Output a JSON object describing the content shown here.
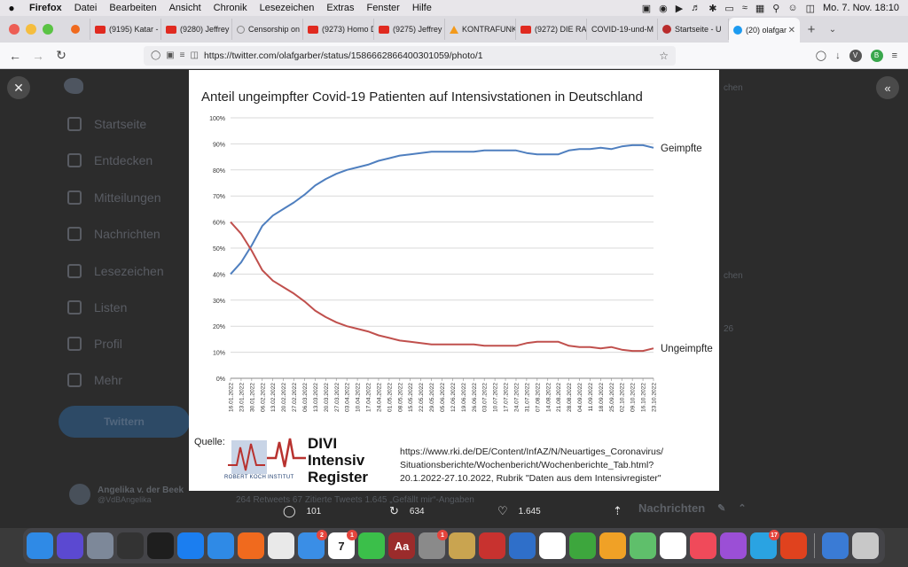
{
  "menubar": {
    "apple": "",
    "items": [
      "Firefox",
      "Datei",
      "Bearbeiten",
      "Ansicht",
      "Chronik",
      "Lesezeichen",
      "Extras",
      "Fenster",
      "Hilfe"
    ],
    "clock": "Mo. 7. Nov.  18:10"
  },
  "tabs": [
    {
      "label": "(9195) Katar -",
      "icon": "youtube"
    },
    {
      "label": "(9280) Jeffrey",
      "icon": "youtube"
    },
    {
      "label": "Censorship on",
      "icon": "globe"
    },
    {
      "label": "(9273) Homo D",
      "icon": "youtube"
    },
    {
      "label": "(9275) Jeffrey",
      "icon": "youtube"
    },
    {
      "label": "KONTRAFUNK",
      "icon": "kontrafunk"
    },
    {
      "label": "(9272) DIE RA",
      "icon": "youtube"
    },
    {
      "label": "COVID-19-und-M",
      "icon": "none"
    },
    {
      "label": "Startseite - U",
      "icon": "site"
    },
    {
      "label": "(20) olafgar",
      "icon": "twitter",
      "active": true
    }
  ],
  "urlbar": {
    "url": "https://twitter.com/olafgarber/status/1586662866400301059/photo/1"
  },
  "toolbar_avatars": [
    "V",
    "B"
  ],
  "twitter": {
    "nav": [
      "Startseite",
      "Entdecken",
      "Mitteilungen",
      "Nachrichten",
      "Lesezeichen",
      "Listen",
      "Profil",
      "Mehr"
    ],
    "tweet_button": "Twittern",
    "profile_name": "Angelika v. der Beek",
    "profile_handle": "@VdBAngelika",
    "relation_text": "264 Retweets   67 Zitierte Tweets   1.645 „Gefällt mir“-Angaben",
    "right_col": [
      "chen",
      "chen",
      "26"
    ]
  },
  "actions": {
    "replies": "101",
    "retweets": "634",
    "likes": "1.645"
  },
  "messages_label": "Nachrichten",
  "chart_data": {
    "type": "line",
    "title": "Anteil ungeimpfter Covid-19 Patienten auf Intensivstationen in Deutschland",
    "x": [
      "16.01.2022",
      "23.01.2022",
      "30.01.2022",
      "06.02.2022",
      "13.02.2022",
      "20.02.2022",
      "27.02.2022",
      "06.03.2022",
      "13.03.2022",
      "20.03.2022",
      "27.03.2022",
      "03.04.2022",
      "10.04.2022",
      "17.04.2022",
      "24.04.2022",
      "01.05.2022",
      "08.05.2022",
      "15.05.2022",
      "22.05.2022",
      "29.05.2022",
      "05.06.2022",
      "12.06.2022",
      "19.06.2022",
      "26.06.2022",
      "03.07.2022",
      "10.07.2022",
      "17.07.2022",
      "24.07.2022",
      "31.07.2022",
      "07.08.2022",
      "14.08.2022",
      "21.08.2022",
      "28.08.2022",
      "04.09.2022",
      "11.09.2022",
      "18.09.2022",
      "25.09.2022",
      "02.10.2022",
      "09.10.2022",
      "16.10.2022",
      "23.10.2022"
    ],
    "yticks": [
      "0%",
      "10%",
      "20%",
      "30%",
      "40%",
      "50%",
      "60%",
      "70%",
      "80%",
      "90%",
      "100%"
    ],
    "ylim": [
      0,
      100
    ],
    "series": [
      {
        "name": "Geimpfte",
        "color": "#4f7fbf",
        "values": [
          40,
          44.5,
          51,
          58.5,
          62.5,
          65,
          67.5,
          70.5,
          74,
          76.5,
          78.5,
          80,
          81,
          82,
          83.5,
          84.5,
          85.5,
          86,
          86.5,
          87,
          87,
          87,
          87,
          87,
          87.5,
          87.5,
          87.5,
          87.5,
          86.5,
          86,
          86,
          86,
          87.5,
          88,
          88,
          88.5,
          88,
          89,
          89.5,
          89.5,
          88.5
        ]
      },
      {
        "name": "Ungeimpfte",
        "color": "#c0504d",
        "values": [
          60,
          55.5,
          49,
          41.5,
          37.5,
          35,
          32.5,
          29.5,
          26,
          23.5,
          21.5,
          20,
          19,
          18,
          16.5,
          15.5,
          14.5,
          14,
          13.5,
          13,
          13,
          13,
          13,
          13,
          12.5,
          12.5,
          12.5,
          12.5,
          13.5,
          14,
          14,
          14,
          12.5,
          12,
          12,
          11.5,
          12,
          11,
          10.5,
          10.5,
          11.5
        ]
      }
    ]
  },
  "source": {
    "label": "Quelle:",
    "rki_text": "ROBERT KOCH INSTITUT",
    "divi_lines": [
      "DIVI",
      "Intensiv",
      "Register"
    ],
    "lines": [
      "https://www.rki.de/DE/Content/InfAZ/N/Neuartiges_Coronavirus/",
      "Situationsberichte/Wochenbericht/Wochenberichte_Tab.html?",
      "20.1.2022-27.10.2022, Rubrik \"Daten aus dem Intensivregister\""
    ]
  },
  "dock": [
    {
      "name": "finder",
      "color": "#2f8ae6"
    },
    {
      "name": "siri",
      "color": "#5b49d1"
    },
    {
      "name": "launchpad",
      "color": "#7d8899"
    },
    {
      "name": "mission-control",
      "color": "#333333"
    },
    {
      "name": "activity-monitor",
      "color": "#1e1e1e"
    },
    {
      "name": "app-store",
      "color": "#1b7ef0"
    },
    {
      "name": "safari",
      "color": "#2f8ae6"
    },
    {
      "name": "firefox",
      "color": "#f06a1e"
    },
    {
      "name": "chrome",
      "color": "#e9e9e9"
    },
    {
      "name": "mail",
      "color": "#3a8ee6",
      "badge": "2"
    },
    {
      "name": "calendar",
      "color": "#ffffff",
      "label": "7",
      "badge": "1"
    },
    {
      "name": "facetime",
      "color": "#3bbf4a"
    },
    {
      "name": "dictionary",
      "color": "#9b2b2b",
      "label": "Aa"
    },
    {
      "name": "system-preferences",
      "color": "#8a8a8a",
      "badge": "1"
    },
    {
      "name": "keychain",
      "color": "#c9a450"
    },
    {
      "name": "photo-booth",
      "color": "#c8322f"
    },
    {
      "name": "openoffice",
      "color": "#2f6fc9"
    },
    {
      "name": "keynote",
      "color": "#ffffff"
    },
    {
      "name": "numbers",
      "color": "#3da63d"
    },
    {
      "name": "pages",
      "color": "#f0a126"
    },
    {
      "name": "maps",
      "color": "#5fbf6b"
    },
    {
      "name": "photos",
      "color": "#ffffff"
    },
    {
      "name": "music",
      "color": "#f04a5a"
    },
    {
      "name": "podcasts",
      "color": "#9b4fd6"
    },
    {
      "name": "telegram",
      "color": "#2aa3e2",
      "badge": "17"
    },
    {
      "name": "firefox-2",
      "color": "#e0421e"
    },
    {
      "name": "downloads",
      "color": "#3a7bd5"
    },
    {
      "name": "trash",
      "color": "#c8c8c8"
    }
  ]
}
